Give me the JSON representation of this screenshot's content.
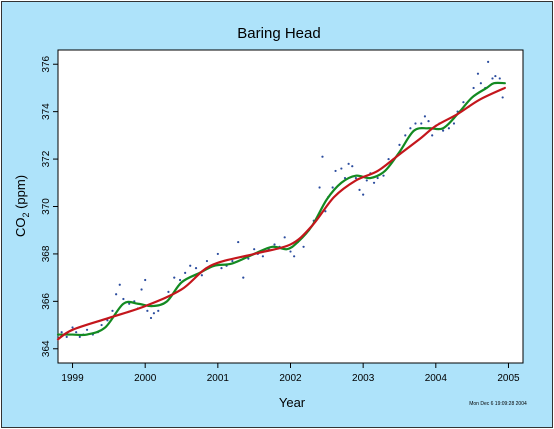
{
  "chart_data": {
    "type": "scatter",
    "title": "Baring Head",
    "xlabel": "Year",
    "ylabel_main": "CO",
    "ylabel_sub": "2",
    "ylabel_unit": " (ppm)",
    "xlim": [
      1998.8,
      2005.2
    ],
    "ylim": [
      363.4,
      376.6
    ],
    "xticks": [
      1999,
      2000,
      2001,
      2002,
      2003,
      2004,
      2005
    ],
    "yticks": [
      364,
      366,
      368,
      370,
      372,
      374,
      376
    ],
    "grid": false,
    "timestamp": "Mon Dec 6 19:09:28 2004",
    "colors": {
      "background": "#aee3fa",
      "plot_background": "#ffffff",
      "points": "#2b4c9e",
      "smooth": "#138a21",
      "trend": "#c4161c"
    },
    "series": [
      {
        "type": "line",
        "color": "#c4161c",
        "x": [
          1998.8,
          1999.0,
          1999.5,
          2000.0,
          2000.5,
          2000.9,
          2001.5,
          2002.0,
          2002.3,
          2002.6,
          2002.9,
          2003.2,
          2003.5,
          2003.8,
          2004.0,
          2004.3,
          2004.6,
          2004.95
        ],
        "y": [
          364.4,
          364.8,
          365.3,
          365.8,
          366.5,
          367.5,
          368.0,
          368.4,
          369.2,
          370.4,
          371.1,
          371.5,
          372.2,
          372.9,
          373.4,
          373.9,
          374.5,
          375.0
        ]
      },
      {
        "type": "line",
        "color": "#138a21",
        "x": [
          1998.8,
          1999.0,
          1999.2,
          1999.45,
          1999.7,
          1999.9,
          2000.1,
          2000.3,
          2000.5,
          2000.75,
          2000.95,
          2001.2,
          2001.5,
          2001.75,
          2001.95,
          2002.1,
          2002.3,
          2002.5,
          2002.7,
          2002.9,
          2003.1,
          2003.3,
          2003.5,
          2003.7,
          2003.9,
          2004.1,
          2004.3,
          2004.5,
          2004.7,
          2004.8,
          2004.95
        ],
        "y": [
          364.6,
          364.6,
          364.6,
          364.9,
          365.9,
          365.9,
          365.8,
          366.0,
          366.8,
          367.2,
          367.5,
          367.6,
          368.0,
          368.3,
          368.2,
          368.5,
          369.2,
          370.3,
          371.0,
          371.3,
          371.2,
          371.5,
          372.3,
          373.2,
          373.3,
          373.3,
          373.9,
          374.6,
          375.0,
          375.2,
          375.2
        ]
      },
      {
        "type": "scatter",
        "color": "#2b4c9e",
        "x": [
          1998.85,
          1998.92,
          1999.0,
          1999.05,
          1999.1,
          1999.15,
          1999.2,
          1999.28,
          1999.35,
          1999.4,
          1999.48,
          1999.55,
          1999.6,
          1999.65,
          1999.7,
          1999.78,
          1999.85,
          1999.9,
          1999.95,
          2000.0,
          2000.03,
          2000.08,
          2000.12,
          2000.18,
          2000.25,
          2000.32,
          2000.4,
          2000.48,
          2000.55,
          2000.62,
          2000.7,
          2000.78,
          2000.85,
          2000.92,
          2001.0,
          2001.05,
          2001.12,
          2001.2,
          2001.28,
          2001.35,
          2001.42,
          2001.5,
          2001.55,
          2001.62,
          2001.7,
          2001.78,
          2001.85,
          2001.92,
          2002.0,
          2002.05,
          2002.1,
          2002.18,
          2002.25,
          2002.32,
          2002.4,
          2002.44,
          2002.48,
          2002.52,
          2002.58,
          2002.62,
          2002.7,
          2002.75,
          2002.8,
          2002.85,
          2002.9,
          2002.95,
          2003.0,
          2003.05,
          2003.1,
          2003.15,
          2003.2,
          2003.28,
          2003.35,
          2003.42,
          2003.5,
          2003.58,
          2003.65,
          2003.72,
          2003.8,
          2003.85,
          2003.9,
          2003.95,
          2004.0,
          2004.05,
          2004.1,
          2004.18,
          2004.25,
          2004.3,
          2004.38,
          2004.45,
          2004.52,
          2004.58,
          2004.62,
          2004.68,
          2004.72,
          2004.78,
          2004.82,
          2004.88,
          2004.92
        ],
        "y": [
          364.7,
          364.5,
          364.9,
          364.7,
          364.5,
          364.6,
          364.8,
          364.6,
          364.7,
          365.0,
          365.2,
          365.6,
          366.3,
          366.7,
          366.1,
          365.9,
          366.0,
          365.7,
          366.5,
          366.9,
          365.6,
          365.3,
          365.5,
          365.6,
          365.9,
          366.4,
          367.0,
          366.9,
          367.2,
          367.5,
          367.4,
          367.1,
          367.7,
          367.5,
          368.0,
          367.4,
          367.5,
          367.7,
          368.5,
          367.0,
          367.8,
          368.2,
          368.0,
          367.9,
          368.2,
          368.4,
          368.3,
          368.7,
          368.1,
          367.9,
          368.5,
          368.3,
          369.0,
          369.4,
          370.8,
          372.1,
          369.8,
          370.4,
          370.8,
          371.5,
          371.6,
          371.2,
          371.8,
          371.7,
          371.2,
          370.7,
          370.5,
          371.1,
          371.4,
          371.0,
          371.2,
          371.3,
          372.0,
          372.0,
          372.6,
          373.0,
          373.3,
          373.5,
          373.5,
          373.8,
          373.6,
          373.0,
          373.4,
          373.5,
          373.2,
          373.3,
          373.5,
          374.0,
          374.4,
          374.2,
          375.0,
          375.6,
          375.2,
          375.0,
          376.1,
          375.4,
          375.5,
          375.4,
          374.6
        ]
      }
    ]
  }
}
